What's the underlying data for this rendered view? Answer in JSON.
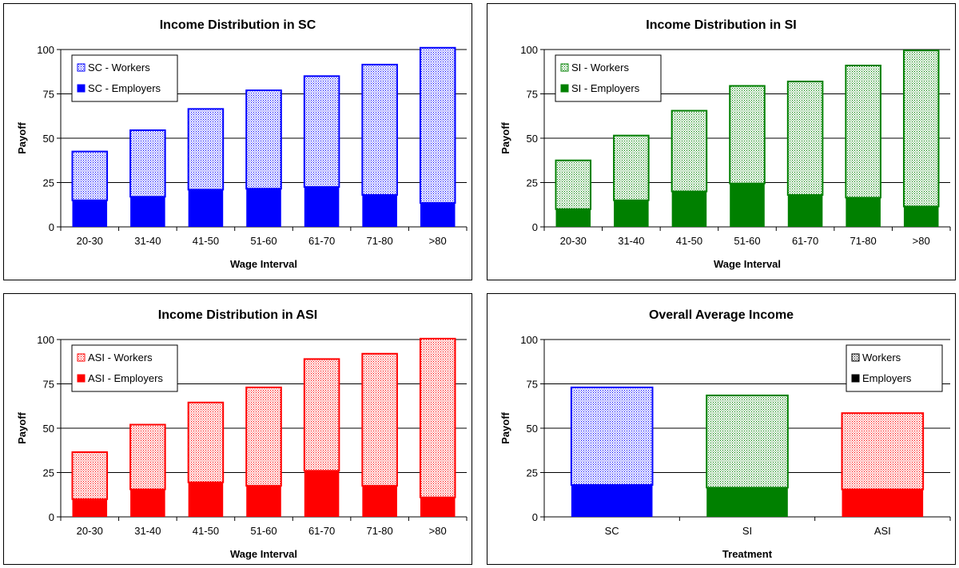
{
  "chart_data": [
    {
      "type": "bar",
      "stacked": true,
      "title": "Income Distribution in SC",
      "xlabel": "Wage Interval",
      "ylabel": "Payoff",
      "ylim": [
        0,
        100
      ],
      "yticks": [
        0,
        25,
        50,
        75,
        100
      ],
      "grid": true,
      "legend_position": "top-left",
      "categories": [
        "20-30",
        "31-40",
        "41-50",
        "51-60",
        "61-70",
        "71-80",
        ">80"
      ],
      "series": [
        {
          "name": "SC - Employers",
          "values": [
            15,
            17,
            21,
            21.5,
            22.5,
            18,
            13.5
          ],
          "color": "#0000ff",
          "pattern": "solid"
        },
        {
          "name": "SC - Workers",
          "values": [
            27.5,
            37.5,
            45.5,
            55.5,
            62.5,
            73.5,
            87.5
          ],
          "color": "#0000ff",
          "pattern": "dotted"
        }
      ]
    },
    {
      "type": "bar",
      "stacked": true,
      "title": "Income Distribution in SI",
      "xlabel": "Wage Interval",
      "ylabel": "Payoff",
      "ylim": [
        0,
        100
      ],
      "yticks": [
        0,
        25,
        50,
        75,
        100
      ],
      "grid": true,
      "legend_position": "top-left",
      "categories": [
        "20-30",
        "31-40",
        "41-50",
        "51-60",
        "61-70",
        "71-80",
        ">80"
      ],
      "series": [
        {
          "name": "SI - Employers",
          "values": [
            10,
            15,
            20,
            24.5,
            18,
            16.5,
            11.5
          ],
          "color": "#008000",
          "pattern": "solid"
        },
        {
          "name": "SI - Workers",
          "values": [
            27.5,
            36.5,
            45.5,
            55,
            64,
            74.5,
            88
          ],
          "color": "#008000",
          "pattern": "dotted"
        }
      ]
    },
    {
      "type": "bar",
      "stacked": true,
      "title": "Income Distribution in ASI",
      "xlabel": "Wage Interval",
      "ylabel": "Payoff",
      "ylim": [
        0,
        100
      ],
      "yticks": [
        0,
        25,
        50,
        75,
        100
      ],
      "grid": true,
      "legend_position": "top-left",
      "categories": [
        "20-30",
        "31-40",
        "41-50",
        "51-60",
        "61-70",
        "71-80",
        ">80"
      ],
      "series": [
        {
          "name": "ASI - Employers",
          "values": [
            10,
            15.5,
            19.5,
            17.5,
            26,
            17.5,
            11
          ],
          "color": "#ff0000",
          "pattern": "solid"
        },
        {
          "name": "ASI - Workers",
          "values": [
            26.5,
            36.5,
            45,
            55.5,
            63,
            74.5,
            89.5
          ],
          "color": "#ff0000",
          "pattern": "dotted"
        }
      ]
    },
    {
      "type": "bar",
      "stacked": true,
      "title": "Overall Average Income",
      "xlabel": "Treatment",
      "ylabel": "Payoff",
      "ylim": [
        0,
        100
      ],
      "yticks": [
        0,
        25,
        50,
        75,
        100
      ],
      "grid": true,
      "legend_position": "top-right",
      "categories": [
        "SC",
        "SI",
        "ASI"
      ],
      "category_colors": [
        "#0000ff",
        "#008000",
        "#ff0000"
      ],
      "legend_color": "#000000",
      "series": [
        {
          "name": "Employers",
          "values": [
            18,
            16.5,
            15.5
          ],
          "pattern": "solid"
        },
        {
          "name": "Workers",
          "values": [
            55,
            52,
            43
          ],
          "pattern": "dotted"
        }
      ]
    }
  ]
}
